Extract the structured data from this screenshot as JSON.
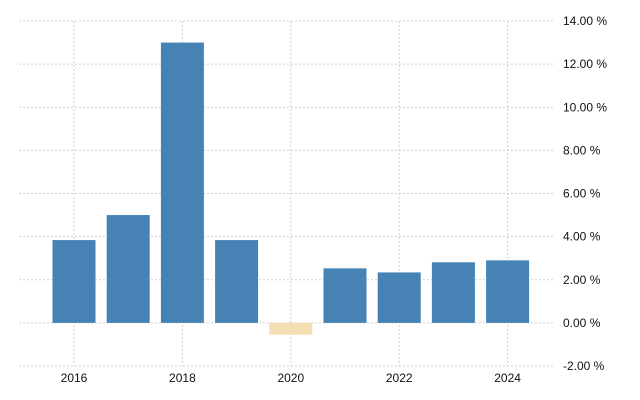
{
  "chart_data": {
    "type": "bar",
    "title": "",
    "xlabel": "",
    "ylabel": "",
    "categories": [
      "2016",
      "2017",
      "2018",
      "2019",
      "2020",
      "2021",
      "2022",
      "2023",
      "2024"
    ],
    "values": [
      3.84,
      5.0,
      13.0,
      3.84,
      -0.55,
      2.53,
      2.34,
      2.81,
      2.9
    ],
    "ylim": [
      -2,
      14
    ],
    "yticks": [
      14,
      12,
      10,
      8,
      6,
      4,
      2,
      0,
      -2
    ],
    "ytick_labels": [
      "14.00 %",
      "12.00 %",
      "10.00 %",
      "8.00 %",
      "6.00 %",
      "4.00 %",
      "2.00 %",
      "0.00 %",
      "-2.00 %"
    ],
    "xtick_labels": [
      "2016",
      "2018",
      "2020",
      "2022",
      "2024"
    ],
    "grid": true,
    "colors": {
      "positive": "#4682b4",
      "negative": "#f5deb3",
      "grid": "#cfcfcf"
    }
  }
}
